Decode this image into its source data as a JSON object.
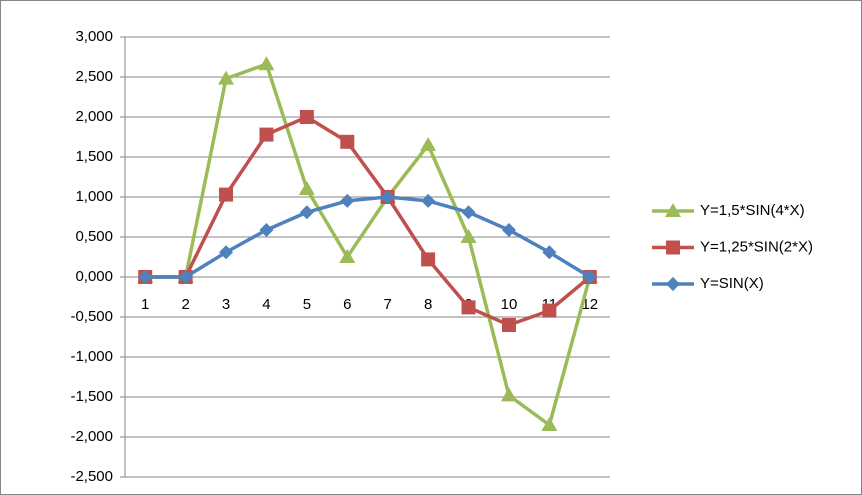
{
  "chart_data": {
    "type": "line",
    "categories": [
      "1",
      "2",
      "3",
      "4",
      "5",
      "6",
      "7",
      "8",
      "9",
      "10",
      "11",
      "12"
    ],
    "series": [
      {
        "name": "Y=1,5*SIN(4*X)",
        "color": "#9bbb59",
        "marker": "triangle",
        "values": [
          0,
          0,
          2.48,
          2.66,
          1.1,
          0.25,
          1.0,
          1.65,
          0.5,
          -1.48,
          -1.85,
          0
        ]
      },
      {
        "name": "Y=1,25*SIN(2*X)",
        "color": "#c0504d",
        "marker": "square",
        "values": [
          0,
          0,
          1.03,
          1.78,
          2.0,
          1.69,
          1.0,
          0.22,
          -0.38,
          -0.6,
          -0.42,
          0
        ]
      },
      {
        "name": "Y=SIN(X)",
        "color": "#4f81bd",
        "marker": "diamond",
        "values": [
          0,
          0,
          0.309,
          0.588,
          0.809,
          0.951,
          1.0,
          0.951,
          0.809,
          0.588,
          0.309,
          0
        ]
      }
    ],
    "ylim": [
      -2.5,
      3.0
    ],
    "yticks": [
      {
        "value": -2.5,
        "label": "-2,500"
      },
      {
        "value": -2.0,
        "label": "-2,000"
      },
      {
        "value": -1.5,
        "label": "-1,500"
      },
      {
        "value": -1.0,
        "label": "-1,000"
      },
      {
        "value": -0.5,
        "label": "-0,500"
      },
      {
        "value": 0,
        "label": "0,000"
      },
      {
        "value": 0.5,
        "label": "0,500"
      },
      {
        "value": 1.0,
        "label": "1,000"
      },
      {
        "value": 1.5,
        "label": "1,500"
      },
      {
        "value": 2.0,
        "label": "2,000"
      },
      {
        "value": 2.5,
        "label": "2,500"
      },
      {
        "value": 3.0,
        "label": "3,000"
      }
    ],
    "grid": true,
    "legend": "right"
  }
}
